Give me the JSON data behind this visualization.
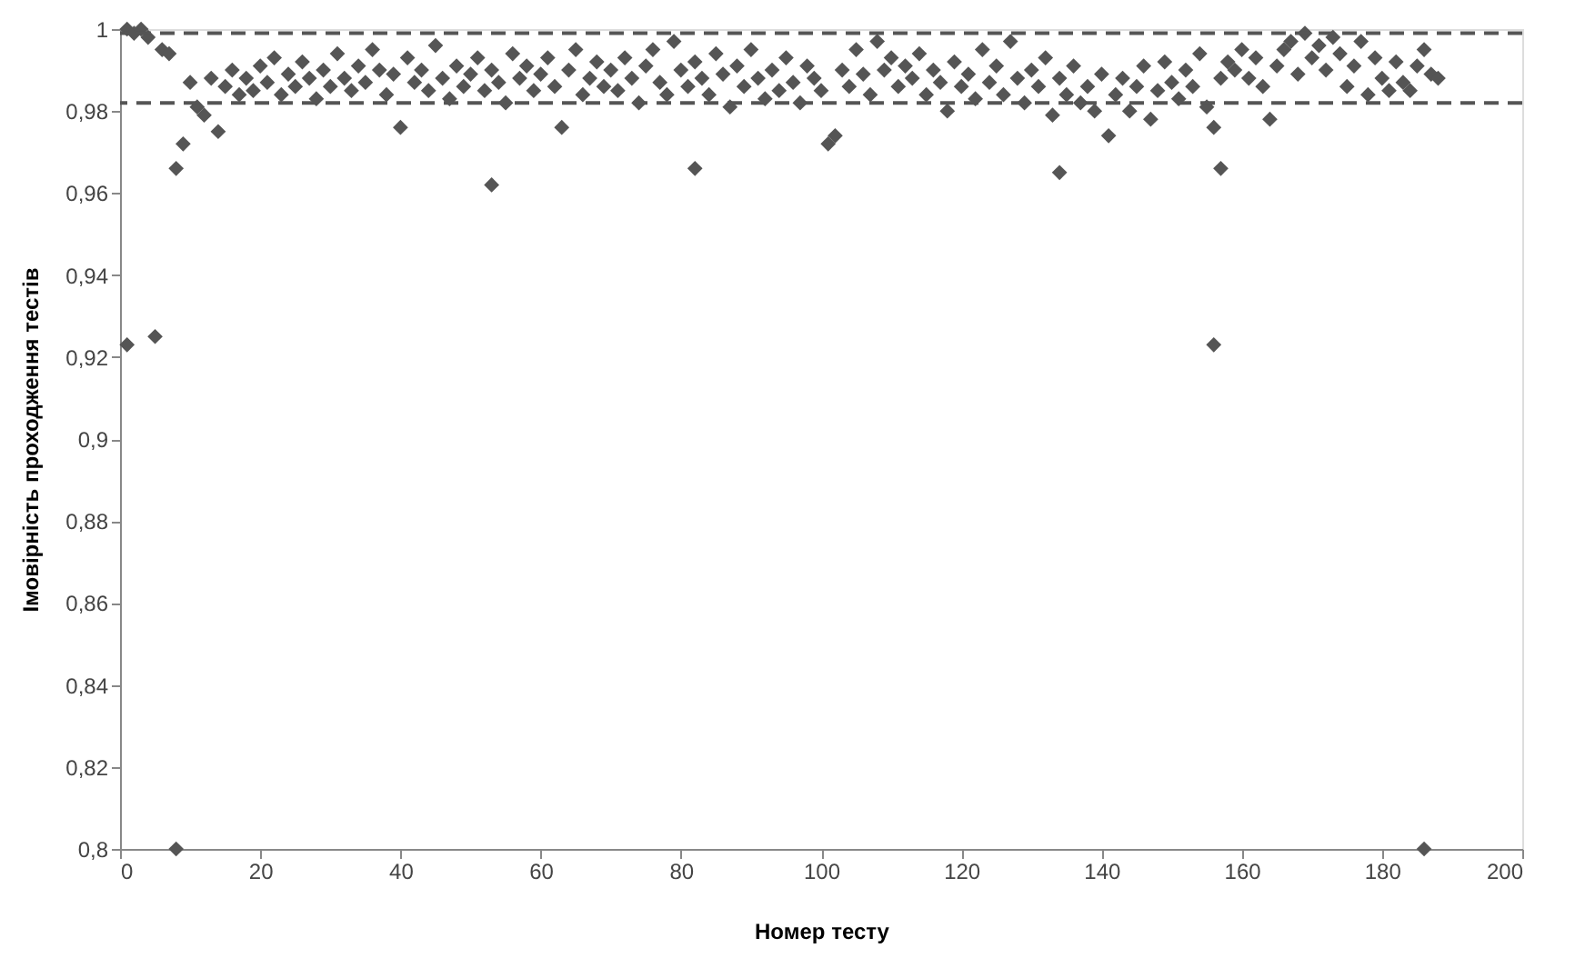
{
  "chart_data": {
    "type": "scatter",
    "xlabel": "Номер тесту",
    "ylabel": "Імовірність проходження тестів",
    "xlim": [
      0,
      200
    ],
    "xticks": [
      0,
      20,
      40,
      60,
      80,
      100,
      120,
      140,
      160,
      180,
      200
    ],
    "ylim": [
      0.8,
      1.0
    ],
    "yticks": [
      {
        "value": 0.8,
        "label": "0,8"
      },
      {
        "value": 0.82,
        "label": "0,82"
      },
      {
        "value": 0.84,
        "label": "0,84"
      },
      {
        "value": 0.86,
        "label": "0,86"
      },
      {
        "value": 0.88,
        "label": "0,88"
      },
      {
        "value": 0.9,
        "label": "0,9"
      },
      {
        "value": 0.92,
        "label": "0,92"
      },
      {
        "value": 0.94,
        "label": "0,94"
      },
      {
        "value": 0.96,
        "label": "0,96"
      },
      {
        "value": 0.98,
        "label": "0,98"
      },
      {
        "value": 1.0,
        "label": "1"
      }
    ],
    "grid": false,
    "legend": false,
    "marker": "diamond",
    "ref_lines": [
      {
        "axis": "y",
        "value": 0.999,
        "color": "#555555",
        "line_style": "dashed"
      },
      {
        "axis": "y",
        "value": 0.982,
        "color": "#555555",
        "line_style": "dashed"
      }
    ],
    "series": [
      {
        "color": "#555555",
        "x": [
          1,
          2,
          3,
          4,
          5,
          6,
          7,
          8,
          9,
          10,
          11,
          12,
          13,
          14,
          15,
          16,
          17,
          18,
          19,
          20,
          21,
          22,
          23,
          24,
          25,
          26,
          27,
          28,
          29,
          30,
          31,
          32,
          33,
          34,
          35,
          36,
          37,
          38,
          39,
          40,
          41,
          42,
          43,
          44,
          45,
          46,
          47,
          48,
          49,
          50,
          51,
          52,
          53,
          54,
          55,
          56,
          57,
          58,
          59,
          60,
          61,
          62,
          63,
          64,
          65,
          66,
          67,
          68,
          69,
          70,
          71,
          72,
          73,
          74,
          75,
          76,
          77,
          78,
          79,
          80,
          81,
          82,
          83,
          84,
          85,
          86,
          87,
          88,
          89,
          90,
          91,
          92,
          93,
          94,
          95,
          96,
          97,
          98,
          99,
          100,
          101,
          102,
          103,
          104,
          105,
          106,
          107,
          108,
          109,
          110,
          111,
          112,
          113,
          114,
          115,
          116,
          117,
          118,
          119,
          120,
          121,
          122,
          123,
          124,
          125,
          126,
          127,
          128,
          129,
          130,
          131,
          132,
          133,
          134,
          135,
          136,
          137,
          138,
          139,
          140,
          141,
          142,
          143,
          144,
          145,
          146,
          147,
          148,
          149,
          150,
          151,
          152,
          153,
          154,
          155,
          156,
          157,
          158,
          159,
          160,
          161,
          162,
          163,
          164,
          165,
          166,
          167,
          168,
          169,
          170,
          171,
          172,
          173,
          174,
          175,
          176,
          177,
          178,
          179,
          180,
          181,
          182,
          183,
          184,
          185,
          186,
          187,
          188,
          1,
          8,
          53,
          82,
          134,
          156,
          157,
          186
        ],
        "values": [
          1.0,
          0.999,
          1.0,
          0.998,
          0.925,
          0.995,
          0.994,
          0.966,
          0.972,
          0.987,
          0.981,
          0.979,
          0.988,
          0.975,
          0.986,
          0.99,
          0.984,
          0.988,
          0.985,
          0.991,
          0.987,
          0.993,
          0.984,
          0.989,
          0.986,
          0.992,
          0.988,
          0.983,
          0.99,
          0.986,
          0.994,
          0.988,
          0.985,
          0.991,
          0.987,
          0.995,
          0.99,
          0.984,
          0.989,
          0.976,
          0.993,
          0.987,
          0.99,
          0.985,
          0.996,
          0.988,
          0.983,
          0.991,
          0.986,
          0.989,
          0.993,
          0.985,
          0.99,
          0.987,
          0.982,
          0.994,
          0.988,
          0.991,
          0.985,
          0.989,
          0.993,
          0.986,
          0.976,
          0.99,
          0.995,
          0.984,
          0.988,
          0.992,
          0.986,
          0.99,
          0.985,
          0.993,
          0.988,
          0.982,
          0.991,
          0.995,
          0.987,
          0.984,
          0.997,
          0.99,
          0.986,
          0.992,
          0.988,
          0.984,
          0.994,
          0.989,
          0.981,
          0.991,
          0.986,
          0.995,
          0.988,
          0.983,
          0.99,
          0.985,
          0.993,
          0.987,
          0.982,
          0.991,
          0.988,
          0.985,
          0.972,
          0.974,
          0.99,
          0.986,
          0.995,
          0.989,
          0.984,
          0.997,
          0.99,
          0.993,
          0.986,
          0.991,
          0.988,
          0.994,
          0.984,
          0.99,
          0.987,
          0.98,
          0.992,
          0.986,
          0.989,
          0.983,
          0.995,
          0.987,
          0.991,
          0.984,
          0.997,
          0.988,
          0.982,
          0.99,
          0.986,
          0.993,
          0.979,
          0.988,
          0.984,
          0.991,
          0.982,
          0.986,
          0.98,
          0.989,
          0.974,
          0.984,
          0.988,
          0.98,
          0.986,
          0.991,
          0.978,
          0.985,
          0.992,
          0.987,
          0.983,
          0.99,
          0.986,
          0.994,
          0.981,
          0.976,
          0.988,
          0.992,
          0.99,
          0.995,
          0.988,
          0.993,
          0.986,
          0.978,
          0.991,
          0.995,
          0.997,
          0.989,
          0.999,
          0.993,
          0.996,
          0.99,
          0.998,
          0.994,
          0.986,
          0.991,
          0.997,
          0.984,
          0.993,
          0.988,
          0.985,
          0.992,
          0.987,
          0.985,
          0.991,
          0.995,
          0.989,
          0.988,
          0.923,
          0.8,
          0.962,
          0.966,
          0.965,
          0.923,
          0.966,
          0.8
        ]
      }
    ]
  }
}
